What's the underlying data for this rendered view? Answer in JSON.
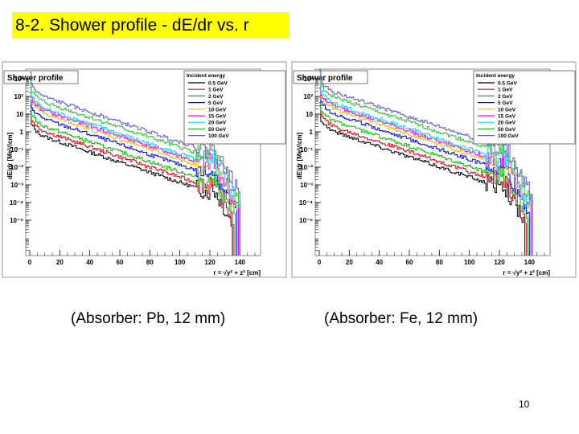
{
  "slide": {
    "title": "8-2. Shower profile - dE/dr vs. r",
    "page_number": "10"
  },
  "colors": {
    "title_bg": "#ffff00",
    "frame": "#8c8c8c",
    "plot_bg": "#ffffff"
  },
  "chart_data": [
    {
      "type": "line",
      "title": "Shower profile",
      "xlabel": "r = √y² + z² [cm]",
      "ylabel": "dE/dr [MeV/cm]",
      "caption": "(Absorber: Pb,  12 mm)",
      "xlim": [
        0,
        150
      ],
      "ylim": [
        1e-06,
        2000
      ],
      "log_y": true,
      "x_ticks": [
        "0",
        "20",
        "40",
        "60",
        "80",
        "100",
        "120",
        "140"
      ],
      "y_ticks": [
        "10³",
        "10²",
        "10",
        "1",
        "10⁻¹",
        "10⁻²",
        "10⁻³",
        "10⁻⁴",
        "10⁻⁵"
      ],
      "legend": {
        "title": "Incident energy",
        "placement": "top-right"
      },
      "x_end_by_energy": [
        135,
        136,
        137,
        138,
        139,
        139,
        140,
        140,
        140
      ],
      "series": [
        {
          "name": "0.5 GeV",
          "color": "#000000",
          "y0": 4,
          "y120": 0.0015
        },
        {
          "name": "1 GeV",
          "color": "#e8001c",
          "y0": 8,
          "y120": 0.003
        },
        {
          "name": "2 GeV",
          "color": "#00c000",
          "y0": 15,
          "y120": 0.006
        },
        {
          "name": "5 GeV",
          "color": "#0000ff",
          "y0": 40,
          "y120": 0.015
        },
        {
          "name": "10 GeV",
          "color": "#e0c000",
          "y0": 80,
          "y120": 0.03
        },
        {
          "name": "15 GeV",
          "color": "#ff00ff",
          "y0": 120,
          "y120": 0.045
        },
        {
          "name": "20 GeV",
          "color": "#00e0e0",
          "y0": 160,
          "y120": 0.06
        },
        {
          "name": "50 GeV",
          "color": "#30c030",
          "y0": 350,
          "y120": 0.15
        },
        {
          "name": "100 GeV",
          "color": "#6060c0",
          "y0": 700,
          "y120": 0.3
        }
      ]
    },
    {
      "type": "line",
      "title": "Shower profile",
      "xlabel": "r = √y² + z² [cm]",
      "ylabel": "dE/dr [MeV/cm]",
      "caption": "(Absorber: Fe, 12 mm)",
      "xlim": [
        0,
        150
      ],
      "ylim": [
        1e-06,
        2000
      ],
      "log_y": true,
      "x_ticks": [
        "0",
        "20",
        "40",
        "60",
        "80",
        "100",
        "120",
        "140"
      ],
      "y_ticks": [
        "10³",
        "10²",
        "10",
        "1",
        "10⁻¹",
        "10⁻²",
        "10⁻³",
        "10⁻⁴",
        "10⁻⁵"
      ],
      "legend": {
        "title": "Incident energy",
        "placement": "top-right"
      },
      "x_end_by_energy": [
        137,
        138,
        139,
        140,
        141,
        141,
        142,
        142,
        142
      ],
      "series": [
        {
          "name": "0.5 GeV",
          "color": "#000000",
          "y0": 8,
          "y120": 0.003
        },
        {
          "name": "1 GeV",
          "color": "#e8001c",
          "y0": 15,
          "y120": 0.006
        },
        {
          "name": "2 GeV",
          "color": "#00c000",
          "y0": 30,
          "y120": 0.012
        },
        {
          "name": "5 GeV",
          "color": "#0000ff",
          "y0": 80,
          "y120": 0.03
        },
        {
          "name": "10 GeV",
          "color": "#e0c000",
          "y0": 150,
          "y120": 0.06
        },
        {
          "name": "15 GeV",
          "color": "#ff00ff",
          "y0": 220,
          "y120": 0.09
        },
        {
          "name": "20 GeV",
          "color": "#00e0e0",
          "y0": 300,
          "y120": 0.12
        },
        {
          "name": "50 GeV",
          "color": "#30c030",
          "y0": 700,
          "y120": 0.3
        },
        {
          "name": "100 GeV",
          "color": "#6060c0",
          "y0": 1300,
          "y120": 0.6
        }
      ]
    }
  ]
}
